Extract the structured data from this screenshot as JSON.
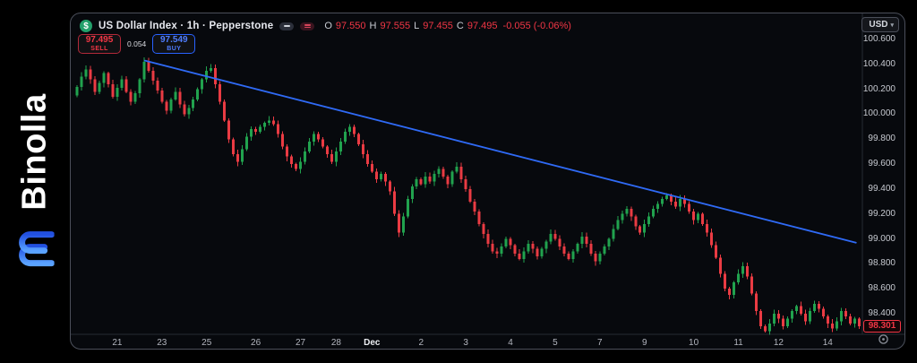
{
  "brand": {
    "name": "Binolla"
  },
  "header": {
    "symbol_icon": "$",
    "title": "US Dollar Index · 1h · Pepperstone",
    "ohlc": {
      "o_label": "O",
      "o": "97.550",
      "h_label": "H",
      "h": "97.555",
      "l_label": "L",
      "l": "97.455",
      "c_label": "C",
      "c": "97.495",
      "change": "-0.055 (-0.06%)"
    }
  },
  "trade": {
    "sell_price": "97.495",
    "sell_label": "SELL",
    "spread": "0.054",
    "buy_price": "97.549",
    "buy_label": "BUY"
  },
  "price_axis": {
    "currency": "USD",
    "ticks": [
      "100.600",
      "100.400",
      "100.200",
      "100.000",
      "99.800",
      "99.600",
      "99.400",
      "99.200",
      "99.000",
      "98.800",
      "98.600",
      "98.400"
    ],
    "last_price": "98.301"
  },
  "time_axis": {
    "ticks": [
      {
        "label": "21",
        "i": 9
      },
      {
        "label": "23",
        "i": 19
      },
      {
        "label": "25",
        "i": 29
      },
      {
        "label": "26",
        "i": 40
      },
      {
        "label": "27",
        "i": 50
      },
      {
        "label": "28",
        "i": 58
      },
      {
        "label": "Dec",
        "i": 66,
        "strong": true
      },
      {
        "label": "2",
        "i": 77
      },
      {
        "label": "3",
        "i": 87
      },
      {
        "label": "4",
        "i": 97
      },
      {
        "label": "5",
        "i": 107
      },
      {
        "label": "7",
        "i": 117
      },
      {
        "label": "9",
        "i": 127
      },
      {
        "label": "10",
        "i": 138
      },
      {
        "label": "11",
        "i": 148
      },
      {
        "label": "12",
        "i": 157
      },
      {
        "label": "14",
        "i": 168
      }
    ]
  },
  "chart_data": {
    "type": "candlestick",
    "symbol": "US Dollar Index",
    "timeframe": "1h",
    "broker": "Pepperstone",
    "ylim": [
      98.25,
      100.77
    ],
    "open_first": 100.15,
    "closes": [
      100.22,
      100.3,
      100.36,
      100.28,
      100.18,
      100.25,
      100.33,
      100.24,
      100.14,
      100.21,
      100.28,
      100.18,
      100.1,
      100.17,
      100.28,
      100.42,
      100.35,
      100.27,
      100.19,
      100.1,
      100.03,
      100.12,
      100.18,
      100.08,
      100.0,
      100.05,
      100.12,
      100.2,
      100.28,
      100.35,
      100.37,
      100.24,
      100.1,
      99.95,
      99.8,
      99.68,
      99.62,
      99.72,
      99.82,
      99.88,
      99.86,
      99.9,
      99.93,
      99.95,
      99.92,
      99.84,
      99.74,
      99.66,
      99.6,
      99.56,
      99.62,
      99.7,
      99.78,
      99.84,
      99.8,
      99.74,
      99.68,
      99.62,
      99.7,
      99.78,
      99.86,
      99.9,
      99.84,
      99.76,
      99.68,
      99.6,
      99.54,
      99.48,
      99.52,
      99.46,
      99.38,
      99.2,
      99.05,
      99.18,
      99.32,
      99.42,
      99.48,
      99.44,
      99.5,
      99.46,
      99.52,
      99.56,
      99.5,
      99.44,
      99.54,
      99.58,
      99.48,
      99.4,
      99.3,
      99.22,
      99.12,
      99.04,
      98.96,
      98.9,
      98.88,
      98.94,
      99.0,
      98.95,
      98.88,
      98.84,
      98.9,
      98.96,
      98.92,
      98.86,
      98.92,
      98.98,
      99.04,
      99.0,
      98.94,
      98.88,
      98.84,
      98.9,
      98.96,
      99.02,
      98.96,
      98.88,
      98.82,
      98.88,
      98.94,
      99.0,
      99.08,
      99.15,
      99.2,
      99.24,
      99.18,
      99.1,
      99.05,
      99.12,
      99.18,
      99.24,
      99.28,
      99.32,
      99.35,
      99.3,
      99.26,
      99.32,
      99.28,
      99.22,
      99.15,
      99.2,
      99.12,
      99.05,
      98.95,
      98.85,
      98.72,
      98.6,
      98.55,
      98.65,
      98.72,
      98.78,
      98.7,
      98.56,
      98.42,
      98.3,
      98.26,
      98.32,
      98.4,
      98.36,
      98.3,
      98.36,
      98.42,
      98.46,
      98.4,
      98.34,
      98.42,
      98.48,
      98.44,
      98.38,
      98.32,
      98.28,
      98.34,
      98.42,
      98.38,
      98.32,
      98.36,
      98.301
    ],
    "trendline": {
      "i1": 15.2,
      "p1": 100.43,
      "i2": 174.3,
      "p2": 98.97
    },
    "colors": {
      "up": "#21A24E",
      "down": "#EA3B43",
      "trendline": "#2F6AF5",
      "last_price": "#F23645"
    }
  }
}
